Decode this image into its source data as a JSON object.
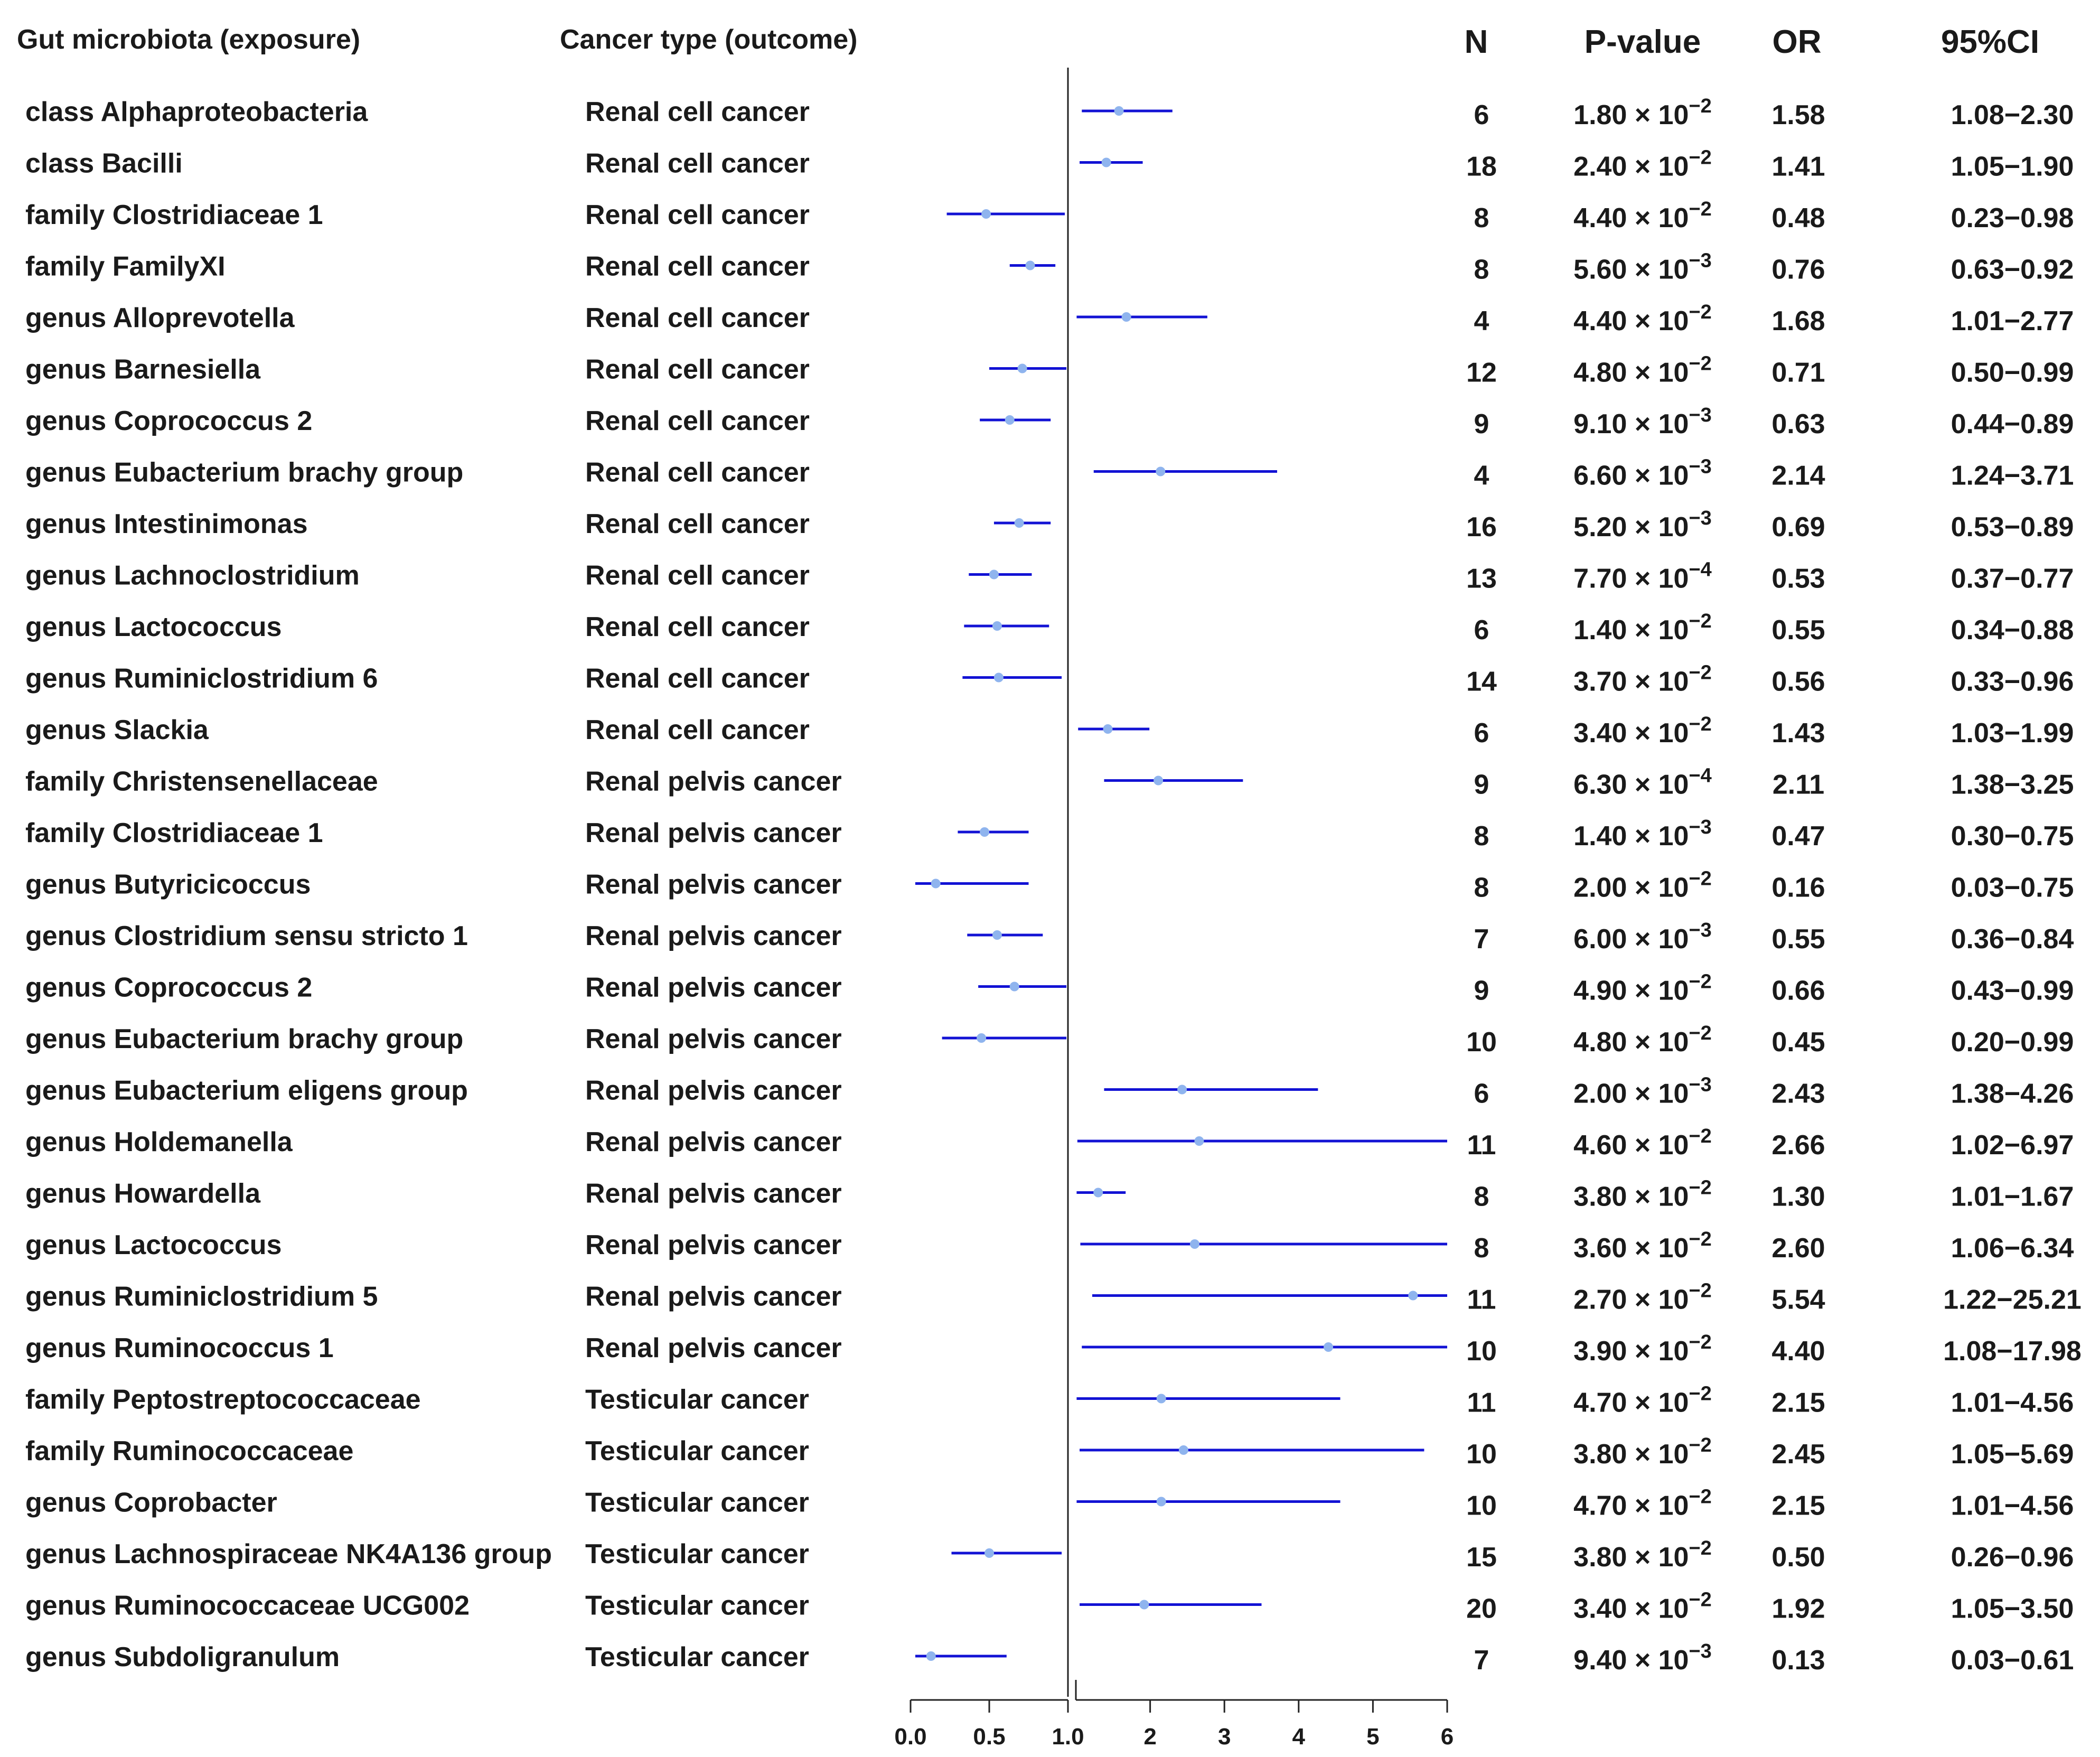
{
  "chart_data": {
    "type": "forest",
    "title": "",
    "column_headers": {
      "exposure": "Gut microbiota (exposure)",
      "outcome": "Cancer type (outcome)",
      "n": "N",
      "pvalue": "P-value",
      "or": "OR",
      "ci": "95%CI"
    },
    "xlabel": "",
    "axis_ticks": [
      "0.0",
      "0.5",
      "1.0",
      "2",
      "3",
      "4",
      "5",
      "6"
    ],
    "reference_line": 1.0,
    "colors": {
      "ci_line": "#1212d4",
      "point": "#8fb4ee",
      "axis": "#222222",
      "text": "#1a1a1a"
    },
    "rows": [
      {
        "exposure": "class Alphaproteobacteria",
        "outcome": "Renal cell cancer",
        "n": "6",
        "p_mant": "1.80 × 10",
        "p_exp": "−2",
        "or": 1.58,
        "lower": 1.08,
        "upper": 2.3,
        "ci": "1.08−2.30"
      },
      {
        "exposure": "class Bacilli",
        "outcome": "Renal cell cancer",
        "n": "18",
        "p_mant": "2.40 × 10",
        "p_exp": "−2",
        "or": 1.41,
        "lower": 1.05,
        "upper": 1.9,
        "ci": "1.05−1.90"
      },
      {
        "exposure": "family Clostridiaceae 1",
        "outcome": "Renal cell cancer",
        "n": "8",
        "p_mant": "4.40 × 10",
        "p_exp": "−2",
        "or": 0.48,
        "lower": 0.23,
        "upper": 0.98,
        "ci": "0.23−0.98"
      },
      {
        "exposure": "family FamilyXI",
        "outcome": "Renal cell cancer",
        "n": "8",
        "p_mant": "5.60 × 10",
        "p_exp": "−3",
        "or": 0.76,
        "lower": 0.63,
        "upper": 0.92,
        "ci": "0.63−0.92"
      },
      {
        "exposure": "genus Alloprevotella",
        "outcome": "Renal cell cancer",
        "n": "4",
        "p_mant": "4.40 × 10",
        "p_exp": "−2",
        "or": 1.68,
        "lower": 1.01,
        "upper": 2.77,
        "ci": "1.01−2.77"
      },
      {
        "exposure": "genus Barnesiella",
        "outcome": "Renal cell cancer",
        "n": "12",
        "p_mant": "4.80 × 10",
        "p_exp": "−2",
        "or": 0.71,
        "lower": 0.5,
        "upper": 0.99,
        "ci": "0.50−0.99"
      },
      {
        "exposure": "genus Coprococcus 2",
        "outcome": "Renal cell cancer",
        "n": "9",
        "p_mant": "9.10 × 10",
        "p_exp": "−3",
        "or": 0.63,
        "lower": 0.44,
        "upper": 0.89,
        "ci": "0.44−0.89"
      },
      {
        "exposure": "genus Eubacterium brachy group",
        "outcome": "Renal cell cancer",
        "n": "4",
        "p_mant": "6.60 × 10",
        "p_exp": "−3",
        "or": 2.14,
        "lower": 1.24,
        "upper": 3.71,
        "ci": "1.24−3.71"
      },
      {
        "exposure": "genus Intestinimonas",
        "outcome": "Renal cell cancer",
        "n": "16",
        "p_mant": "5.20 × 10",
        "p_exp": "−3",
        "or": 0.69,
        "lower": 0.53,
        "upper": 0.89,
        "ci": "0.53−0.89"
      },
      {
        "exposure": "genus Lachnoclostridium",
        "outcome": "Renal cell cancer",
        "n": "13",
        "p_mant": "7.70 × 10",
        "p_exp": "−4",
        "or": 0.53,
        "lower": 0.37,
        "upper": 0.77,
        "ci": "0.37−0.77"
      },
      {
        "exposure": "genus Lactococcus",
        "outcome": "Renal cell cancer",
        "n": "6",
        "p_mant": "1.40 × 10",
        "p_exp": "−2",
        "or": 0.55,
        "lower": 0.34,
        "upper": 0.88,
        "ci": "0.34−0.88"
      },
      {
        "exposure": "genus Ruminiclostridium 6",
        "outcome": "Renal cell cancer",
        "n": "14",
        "p_mant": "3.70 × 10",
        "p_exp": "−2",
        "or": 0.56,
        "lower": 0.33,
        "upper": 0.96,
        "ci": "0.33−0.96"
      },
      {
        "exposure": "genus Slackia",
        "outcome": "Renal cell cancer",
        "n": "6",
        "p_mant": "3.40 × 10",
        "p_exp": "−2",
        "or": 1.43,
        "lower": 1.03,
        "upper": 1.99,
        "ci": "1.03−1.99"
      },
      {
        "exposure": "family Christensenellaceae",
        "outcome": "Renal pelvis cancer",
        "n": "9",
        "p_mant": "6.30 × 10",
        "p_exp": "−4",
        "or": 2.11,
        "lower": 1.38,
        "upper": 3.25,
        "ci": "1.38−3.25"
      },
      {
        "exposure": "family Clostridiaceae 1",
        "outcome": "Renal pelvis cancer",
        "n": "8",
        "p_mant": "1.40 × 10",
        "p_exp": "−3",
        "or": 0.47,
        "lower": 0.3,
        "upper": 0.75,
        "ci": "0.30−0.75"
      },
      {
        "exposure": "genus Butyricicoccus",
        "outcome": "Renal pelvis cancer",
        "n": "8",
        "p_mant": "2.00 × 10",
        "p_exp": "−2",
        "or": 0.16,
        "lower": 0.03,
        "upper": 0.75,
        "ci": "0.03−0.75"
      },
      {
        "exposure": "genus Clostridium sensu stricto 1",
        "outcome": "Renal pelvis cancer",
        "n": "7",
        "p_mant": "6.00 × 10",
        "p_exp": "−3",
        "or": 0.55,
        "lower": 0.36,
        "upper": 0.84,
        "ci": "0.36−0.84"
      },
      {
        "exposure": "genus Coprococcus 2",
        "outcome": "Renal pelvis cancer",
        "n": "9",
        "p_mant": "4.90 × 10",
        "p_exp": "−2",
        "or": 0.66,
        "lower": 0.43,
        "upper": 0.99,
        "ci": "0.43−0.99"
      },
      {
        "exposure": "genus Eubacterium brachy group",
        "outcome": "Renal pelvis cancer",
        "n": "10",
        "p_mant": "4.80 × 10",
        "p_exp": "−2",
        "or": 0.45,
        "lower": 0.2,
        "upper": 0.99,
        "ci": "0.20−0.99"
      },
      {
        "exposure": "genus Eubacterium eligens group",
        "outcome": "Renal pelvis cancer",
        "n": "6",
        "p_mant": "2.00 × 10",
        "p_exp": "−3",
        "or": 2.43,
        "lower": 1.38,
        "upper": 4.26,
        "ci": "1.38−4.26"
      },
      {
        "exposure": "genus Holdemanella",
        "outcome": "Renal pelvis cancer",
        "n": "11",
        "p_mant": "4.60 × 10",
        "p_exp": "−2",
        "or": 2.66,
        "lower": 1.02,
        "upper": 6.97,
        "ci": "1.02−6.97"
      },
      {
        "exposure": "genus Howardella",
        "outcome": "Renal pelvis cancer",
        "n": "8",
        "p_mant": "3.80 × 10",
        "p_exp": "−2",
        "or": 1.3,
        "lower": 1.01,
        "upper": 1.67,
        "ci": "1.01−1.67"
      },
      {
        "exposure": "genus Lactococcus",
        "outcome": "Renal pelvis cancer",
        "n": "8",
        "p_mant": "3.60 × 10",
        "p_exp": "−2",
        "or": 2.6,
        "lower": 1.06,
        "upper": 6.34,
        "ci": "1.06−6.34"
      },
      {
        "exposure": "genus Ruminiclostridium 5",
        "outcome": "Renal pelvis cancer",
        "n": "11",
        "p_mant": "2.70 × 10",
        "p_exp": "−2",
        "or": 5.54,
        "lower": 1.22,
        "upper": 25.21,
        "ci": "1.22−25.21"
      },
      {
        "exposure": "genus Ruminococcus 1",
        "outcome": "Renal pelvis cancer",
        "n": "10",
        "p_mant": "3.90 × 10",
        "p_exp": "−2",
        "or": 4.4,
        "lower": 1.08,
        "upper": 17.98,
        "ci": "1.08−17.98"
      },
      {
        "exposure": "family Peptostreptococcaceae",
        "outcome": "Testicular cancer",
        "n": "11",
        "p_mant": "4.70 × 10",
        "p_exp": "−2",
        "or": 2.15,
        "lower": 1.01,
        "upper": 4.56,
        "ci": "1.01−4.56"
      },
      {
        "exposure": "family Ruminococcaceae",
        "outcome": "Testicular cancer",
        "n": "10",
        "p_mant": "3.80 × 10",
        "p_exp": "−2",
        "or": 2.45,
        "lower": 1.05,
        "upper": 5.69,
        "ci": "1.05−5.69"
      },
      {
        "exposure": "genus Coprobacter",
        "outcome": "Testicular cancer",
        "n": "10",
        "p_mant": "4.70 × 10",
        "p_exp": "−2",
        "or": 2.15,
        "lower": 1.01,
        "upper": 4.56,
        "ci": "1.01−4.56"
      },
      {
        "exposure": "genus Lachnospiraceae NK4A136 group",
        "outcome": "Testicular cancer",
        "n": "15",
        "p_mant": "3.80 × 10",
        "p_exp": "−2",
        "or": 0.5,
        "lower": 0.26,
        "upper": 0.96,
        "ci": "0.26−0.96"
      },
      {
        "exposure": "genus Ruminococcaceae UCG002",
        "outcome": "Testicular cancer",
        "n": "20",
        "p_mant": "3.40 × 10",
        "p_exp": "−2",
        "or": 1.92,
        "lower": 1.05,
        "upper": 3.5,
        "ci": "1.05−3.50"
      },
      {
        "exposure": "genus Subdoligranulum",
        "outcome": "Testicular cancer",
        "n": "7",
        "p_mant": "9.40 × 10",
        "p_exp": "−3",
        "or": 0.13,
        "lower": 0.03,
        "upper": 0.61,
        "ci": "0.03−0.61"
      }
    ]
  }
}
